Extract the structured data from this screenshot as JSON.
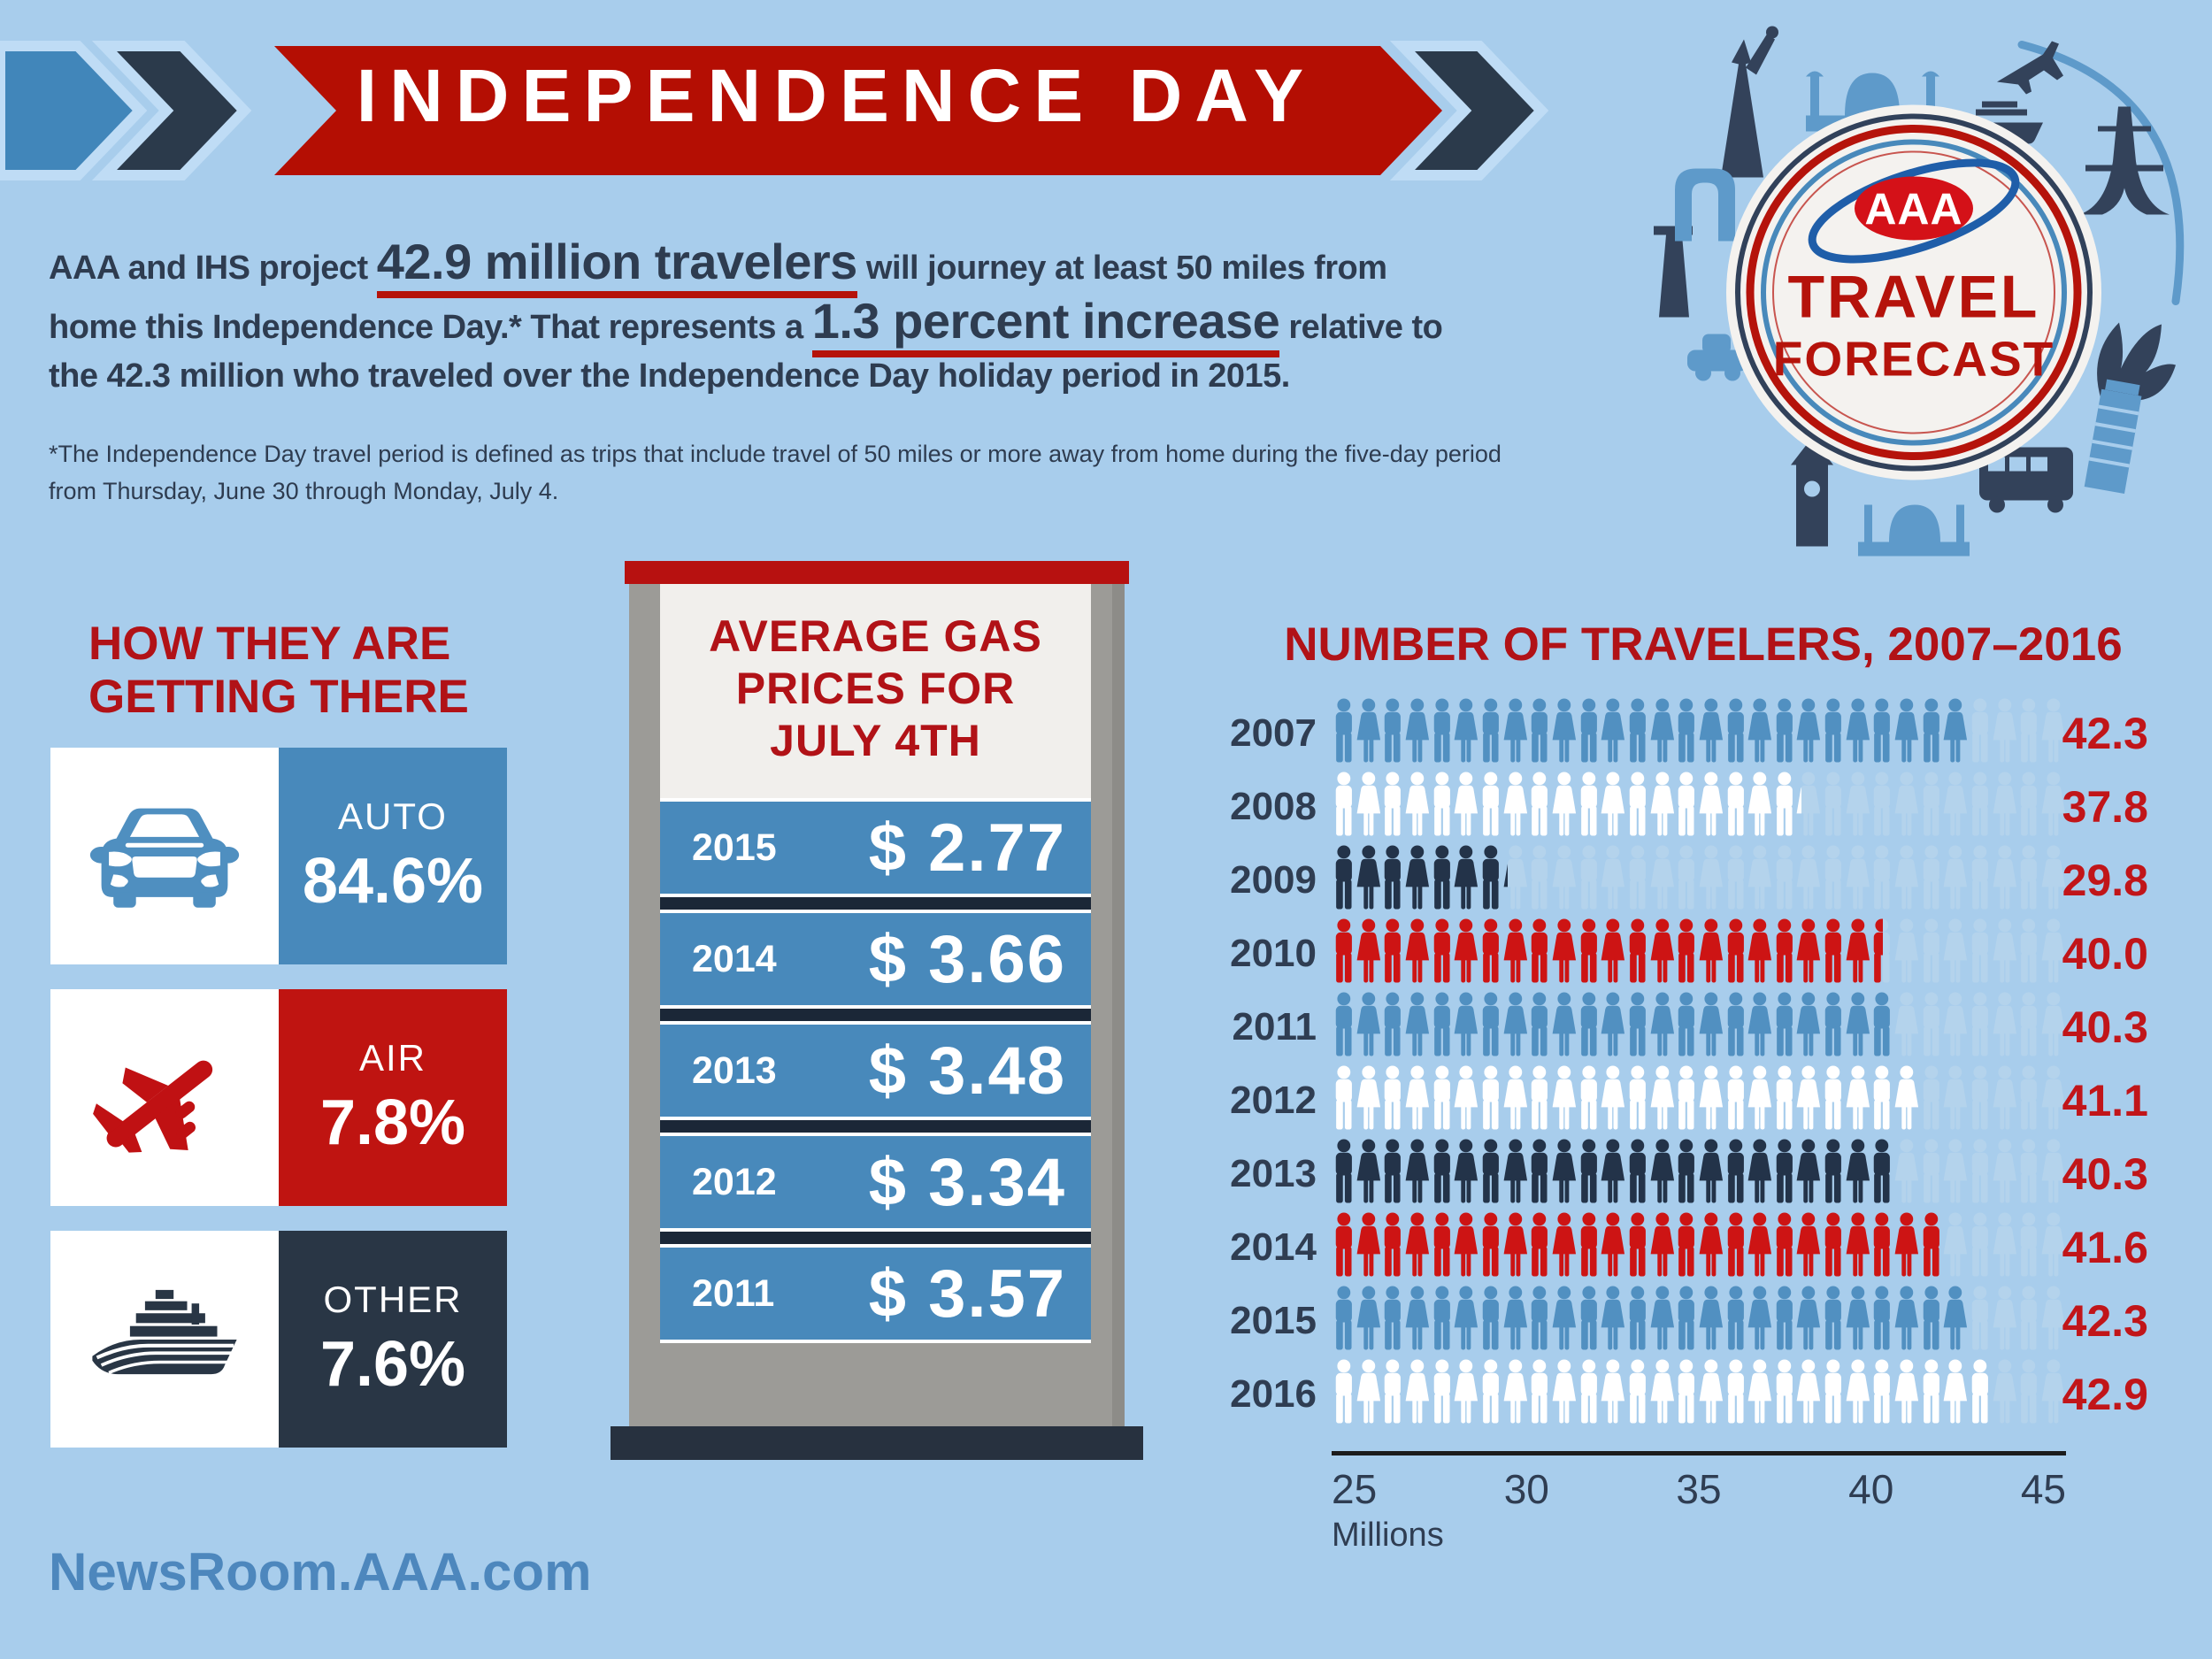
{
  "banner": {
    "title": "INDEPENDENCE DAY"
  },
  "logo": {
    "brand": "AAA",
    "line1": "TRAVEL",
    "line2": "FORECAST"
  },
  "intro": {
    "line1_pre": "AAA and IHS project ",
    "line1_big": "42.9 million travelers",
    "line1_post": " will journey at least 50 miles from",
    "line2_pre": "home this Independence Day.* That represents a ",
    "line2_big": "1.3 percent increase",
    "line2_post": " relative to",
    "line3": "the 42.3 million who traveled over the Independence Day holiday period in 2015."
  },
  "footnote": {
    "line1": "*The Independence Day travel period is defined as trips that include travel of 50 miles or more away from home during the five-day period",
    "line2": "from Thursday, June 30 through Monday, July 4."
  },
  "modes_section": {
    "heading_line1": "HOW THEY ARE",
    "heading_line2": "GETTING THERE"
  },
  "gas_section": {
    "lines": [
      "AVERAGE GAS",
      "PRICES FOR",
      "JULY 4TH"
    ]
  },
  "footer": {
    "url": "NewsRoom.AAA.com"
  },
  "colors": {
    "background": "#a8cdec",
    "banner_red": "#b40e03",
    "heading_red": "#b11217",
    "value_red": "#c11519",
    "navy": "#2b3a4b",
    "navy_text": "#2f3d52",
    "blue": "#4889bb",
    "faded_icon": "#b4d3ec",
    "footer_blue": "#4d87bd",
    "pump_gray": "#9c9b97"
  },
  "chart_data": [
    {
      "id": "travelers",
      "type": "bar",
      "title": "NUMBER OF TRAVELERS, 2007–2016",
      "categories": [
        "2007",
        "2008",
        "2009",
        "2010",
        "2011",
        "2012",
        "2013",
        "2014",
        "2015",
        "2016"
      ],
      "values": [
        42.3,
        37.8,
        29.8,
        40.0,
        40.3,
        41.1,
        40.3,
        41.6,
        42.3,
        42.9
      ],
      "value_labels": [
        "42.3",
        "37.8",
        "29.8",
        "40.0",
        "40.3",
        "41.1",
        "40.3",
        "41.6",
        "42.3",
        "42.9"
      ],
      "row_colors": [
        "#5190c1",
        "#ffffff",
        "#233349",
        "#cd1414",
        "#5190c1",
        "#ffffff",
        "#233349",
        "#cd1414",
        "#5190c1",
        "#ffffff"
      ],
      "xlabel": "Millions",
      "xlim": [
        25,
        45
      ],
      "tick_labels": [
        "25",
        "30",
        "35",
        "40",
        "45"
      ],
      "icons_per_row": 30,
      "legend": "none",
      "grid": false
    },
    {
      "id": "gas_prices",
      "type": "table",
      "title": "AVERAGE GAS PRICES FOR JULY 4TH",
      "categories": [
        "2015",
        "2014",
        "2013",
        "2012",
        "2011"
      ],
      "values": [
        2.77,
        3.66,
        3.48,
        3.34,
        3.57
      ],
      "value_labels": [
        "$ 2.77",
        "$ 3.66",
        "$ 3.48",
        "$ 3.34",
        "$ 3.57"
      ]
    },
    {
      "id": "modes",
      "type": "pie",
      "title": "HOW THEY ARE GETTING THERE",
      "categories": [
        "AUTO",
        "AIR",
        "OTHER"
      ],
      "values": [
        84.6,
        7.8,
        7.6
      ],
      "value_labels": [
        "84.6%",
        "7.8%",
        "7.6%"
      ],
      "colors": [
        "#4889bb",
        "#bf1411",
        "#293645"
      ],
      "icons": [
        "car",
        "plane",
        "ship"
      ]
    }
  ]
}
